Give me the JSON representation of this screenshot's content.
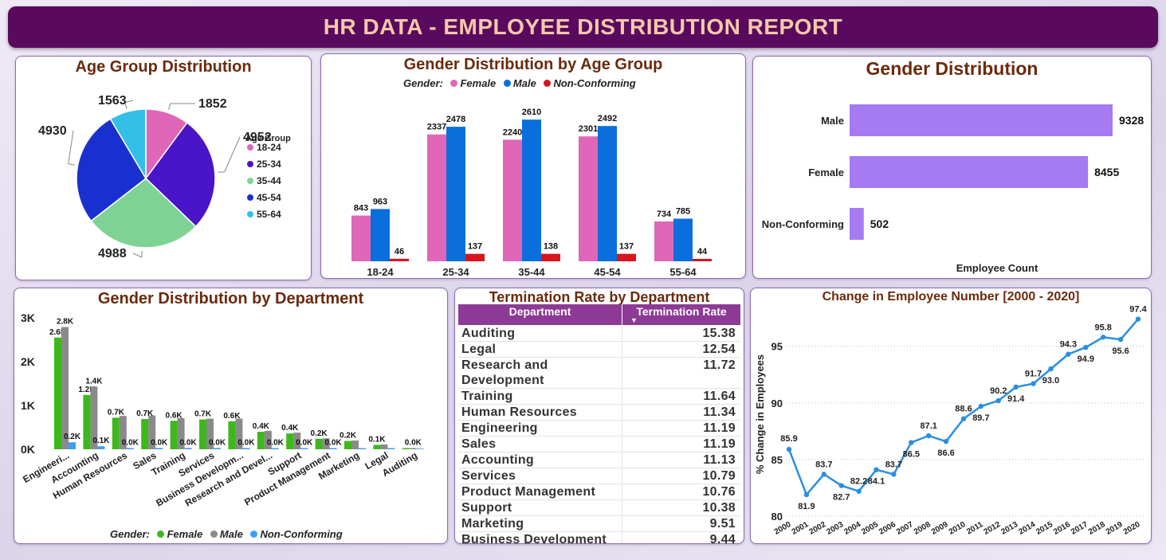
{
  "header": {
    "title": "HR DATA - EMPLOYEE DISTRIBUTION REPORT"
  },
  "colors": {
    "header_bg": "#5a0a5e",
    "title_text": "#6b2a0c",
    "female_pink": "#e066b8",
    "male_blue": "#0a6edc",
    "nonconf_red": "#d8141e",
    "gender_bar": "#a57af2",
    "dept_female": "#3cb81a",
    "dept_male": "#8a8a8a",
    "dept_nonconf": "#3ca0f0",
    "line": "#2a8fe0"
  },
  "chart_data": [
    {
      "id": "age_pie",
      "type": "pie",
      "title": "Age Group Distribution",
      "legend_title": "Age Group",
      "legend_placement": "right",
      "slices": [
        {
          "label": "18-24",
          "value": 1852,
          "color": "#e066b8"
        },
        {
          "label": "25-34",
          "value": 4952,
          "color": "#4a14c8"
        },
        {
          "label": "35-44",
          "value": 4988,
          "color": "#7ed394"
        },
        {
          "label": "45-54",
          "value": 4930,
          "color": "#1930d0"
        },
        {
          "label": "55-64",
          "value": 1563,
          "color": "#33c0e8"
        }
      ]
    },
    {
      "id": "gender_age_bar",
      "type": "bar",
      "title": "Gender Distribution by Age Group",
      "legend_title": "Gender:",
      "legend_placement": "top",
      "categories": [
        "18-24",
        "25-34",
        "35-44",
        "45-54",
        "55-64"
      ],
      "series": [
        {
          "name": "Female",
          "values": [
            843,
            2337,
            2240,
            2301,
            734
          ],
          "color": "#e066b8"
        },
        {
          "name": "Male",
          "values": [
            963,
            2478,
            2610,
            2492,
            785
          ],
          "color": "#0a6edc"
        },
        {
          "name": "Non-Conforming",
          "values": [
            46,
            137,
            138,
            137,
            44
          ],
          "color": "#d8141e"
        }
      ]
    },
    {
      "id": "gender_bar",
      "type": "bar",
      "orientation": "horizontal",
      "title": "Gender Distribution",
      "xlabel": "Employee Count",
      "categories": [
        "Male",
        "Female",
        "Non-Conforming"
      ],
      "values": [
        9328,
        8455,
        502
      ],
      "color": "#a57af2"
    },
    {
      "id": "gender_dept_bar",
      "type": "bar",
      "title": "Gender Distribution by Department",
      "legend_title": "Gender:",
      "legend_placement": "bottom",
      "ylim": [
        0,
        3000
      ],
      "yticks": [
        "0K",
        "1K",
        "2K",
        "3K"
      ],
      "categories": [
        "Engineeri...",
        "Accounting",
        "Human Resources",
        "Sales",
        "Training",
        "Services",
        "Business Developm...",
        "Research and Devel...",
        "Support",
        "Product Management",
        "Marketing",
        "Legal",
        "Auditing"
      ],
      "series": [
        {
          "name": "Female",
          "values": [
            2550,
            1240,
            720,
            690,
            650,
            680,
            640,
            400,
            360,
            240,
            190,
            100,
            5
          ],
          "labels": [
            "2.6K",
            "1.2K",
            "0.7K",
            "0.7K",
            "0.6K",
            "0.7K",
            "0.6K",
            "0.4K",
            "0.4K",
            "0.2K",
            "0.2K",
            "0.1K",
            ""
          ],
          "color": "#3cb81a"
        },
        {
          "name": "Male",
          "values": [
            2790,
            1430,
            760,
            770,
            710,
            700,
            700,
            420,
            380,
            250,
            200,
            110,
            10
          ],
          "labels": [
            "2.8K",
            "1.4K",
            "",
            "",
            "",
            "",
            "",
            "",
            "",
            "",
            "",
            "",
            "0.0K"
          ],
          "color": "#8a8a8a"
        },
        {
          "name": "Non-Conforming",
          "values": [
            160,
            70,
            30,
            30,
            30,
            30,
            30,
            20,
            20,
            10,
            10,
            5,
            0
          ],
          "labels": [
            "0.2K",
            "0.1K",
            "0.0K",
            "0.0K",
            "0.0K",
            "0.0K",
            "0.0K",
            "0.0K",
            "0.0K",
            "0.0K",
            "",
            "",
            ""
          ],
          "color": "#3ca0f0"
        }
      ]
    },
    {
      "id": "termination_table",
      "type": "table",
      "title": "Termination Rate by Department",
      "columns": [
        "Department",
        "Termination Rate"
      ],
      "rows": [
        [
          "Auditing",
          "15.38"
        ],
        [
          "Legal",
          "12.54"
        ],
        [
          "Research and Development",
          "11.72"
        ],
        [
          "Training",
          "11.64"
        ],
        [
          "Human Resources",
          "11.34"
        ],
        [
          "Engineering",
          "11.19"
        ],
        [
          "Sales",
          "11.19"
        ],
        [
          "Accounting",
          "11.13"
        ],
        [
          "Services",
          "10.79"
        ],
        [
          "Product Management",
          "10.76"
        ],
        [
          "Support",
          "10.38"
        ],
        [
          "Marketing",
          "9.51"
        ],
        [
          "Business Development",
          "9.44"
        ]
      ]
    },
    {
      "id": "employee_change_line",
      "type": "line",
      "title": "Change in Employee Number [2000 - 2020]",
      "ylabel": "% Change in Employees",
      "ylim": [
        80,
        98
      ],
      "yticks": [
        80,
        85,
        90,
        95
      ],
      "grid": true,
      "x": [
        "2000",
        "2001",
        "2002",
        "2003",
        "2004",
        "2005",
        "2006",
        "2007",
        "2008",
        "2009",
        "2010",
        "2011",
        "2012",
        "2013",
        "2014",
        "2015",
        "2016",
        "2017",
        "2018",
        "2019",
        "2020"
      ],
      "values": [
        85.9,
        81.9,
        83.7,
        82.7,
        82.2,
        84.1,
        83.7,
        86.5,
        87.1,
        86.6,
        88.6,
        89.7,
        90.2,
        91.4,
        91.7,
        93.0,
        94.3,
        94.9,
        95.8,
        95.6,
        97.4
      ]
    }
  ]
}
